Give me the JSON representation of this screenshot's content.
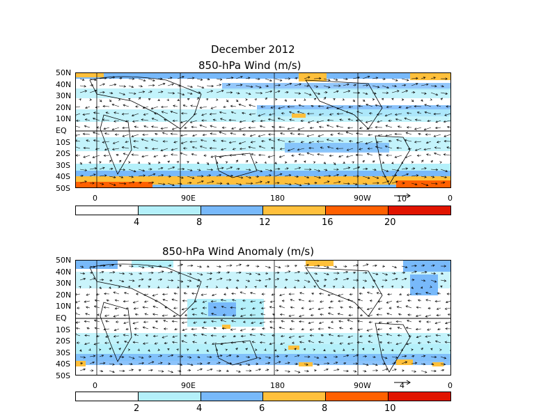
{
  "page": {
    "title": "December 2012"
  },
  "panel1": {
    "title": "850-hPa Wind (m/s)",
    "ref_vector": "10",
    "colorbar_labels": [
      "4",
      "8",
      "12",
      "16",
      "20"
    ]
  },
  "panel2": {
    "title": "850-hPa Wind Anomaly (m/s)",
    "ref_vector": "4",
    "colorbar_labels": [
      "2",
      "4",
      "6",
      "8",
      "10"
    ]
  },
  "lat_labels": [
    "50N",
    "40N",
    "30N",
    "20N",
    "10N",
    "EQ",
    "10S",
    "20S",
    "30S",
    "40S",
    "50S"
  ],
  "lon_labels": [
    "0",
    "90E",
    "180",
    "90W",
    "0"
  ],
  "colors": [
    "#ffffff",
    "#b4f0fa",
    "#78b9fa",
    "#ffc03c",
    "#ff6000",
    "#e11400"
  ]
}
